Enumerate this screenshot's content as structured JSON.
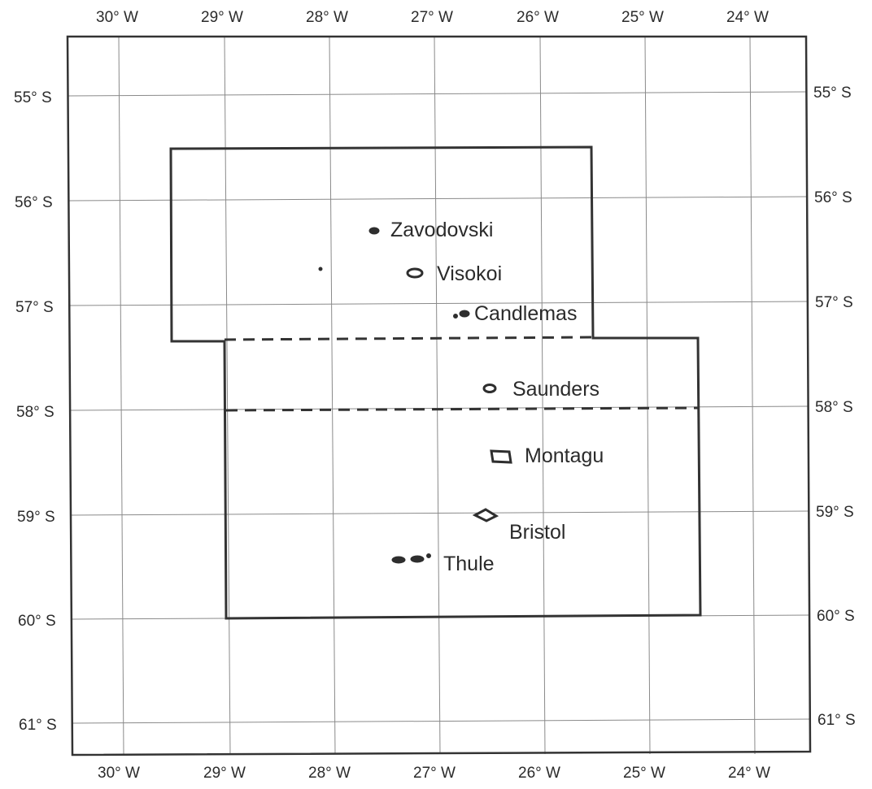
{
  "map": {
    "lon_labels": [
      "30° W",
      "29° W",
      "28° W",
      "27° W",
      "26° W",
      "25° W",
      "24° W"
    ],
    "lat_labels": [
      "55° S",
      "56° S",
      "57° S",
      "58° S",
      "59° S",
      "60° S",
      "61° S"
    ],
    "islands": [
      {
        "id": "zavodovski",
        "name": "Zavodovski",
        "lon": -27.55,
        "lat": -56.3
      },
      {
        "id": "visokoi",
        "name": "Visokoi",
        "lon": -27.2,
        "lat": -56.7
      },
      {
        "id": "candlemas",
        "name": "Candlemas",
        "lon": -26.75,
        "lat": -57.08
      },
      {
        "id": "saunders",
        "name": "Saunders",
        "lon": -26.45,
        "lat": -57.8
      },
      {
        "id": "montagu",
        "name": "Montagu",
        "lon": -26.38,
        "lat": -58.44
      },
      {
        "id": "bristol",
        "name": "Bristol",
        "lon": -26.55,
        "lat": -59.0
      },
      {
        "id": "thule",
        "name": "Thule",
        "lon": -27.3,
        "lat": -59.44
      }
    ],
    "colors": {
      "line": "#333333",
      "grid": "#8a8a8a",
      "land": "#2e2e2e"
    }
  }
}
